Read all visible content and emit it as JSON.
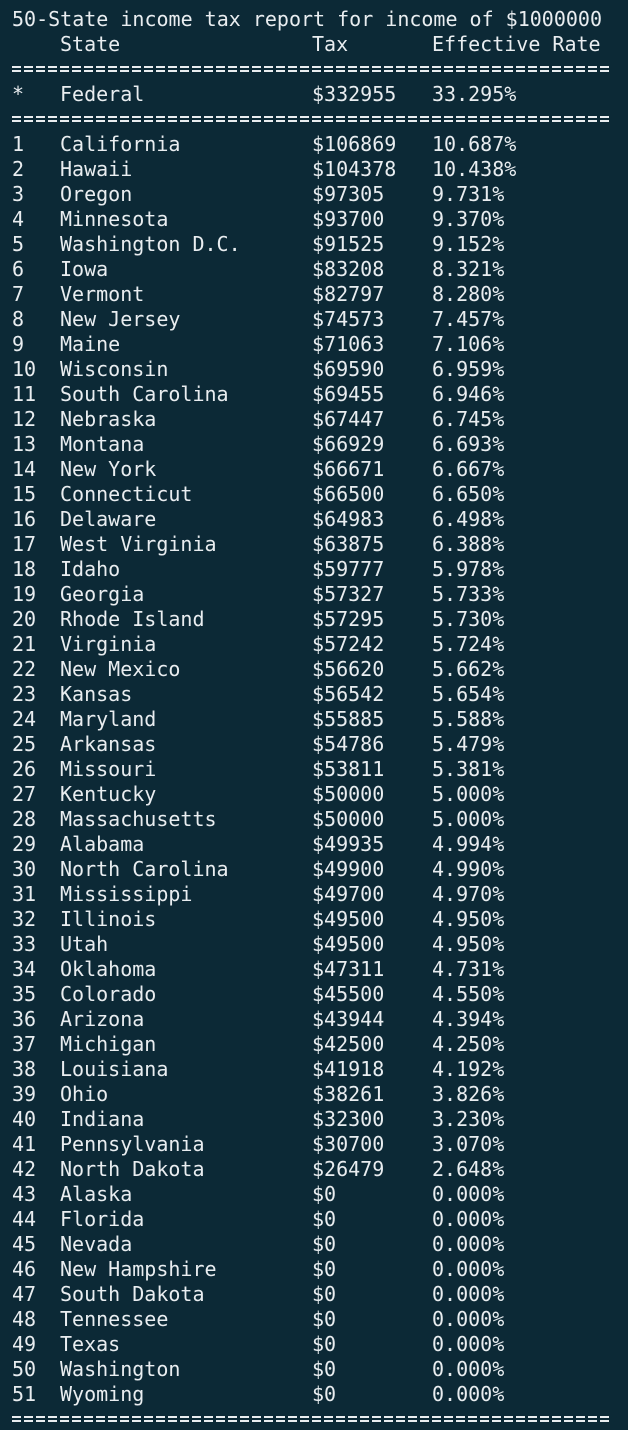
{
  "report": {
    "title": "50-State income tax report for income of $1000000",
    "headers": {
      "state": "State",
      "tax": "Tax",
      "rate": "Effective Rate"
    },
    "federal": {
      "mark": "*",
      "name": "Federal",
      "tax": "$332955",
      "rate": "33.295%"
    }
  },
  "rows": [
    {
      "rank": "1",
      "state": "California",
      "tax": "$106869",
      "rate": "10.687%"
    },
    {
      "rank": "2",
      "state": "Hawaii",
      "tax": "$104378",
      "rate": "10.438%"
    },
    {
      "rank": "3",
      "state": "Oregon",
      "tax": "$97305",
      "rate": "9.731%"
    },
    {
      "rank": "4",
      "state": "Minnesota",
      "tax": "$93700",
      "rate": "9.370%"
    },
    {
      "rank": "5",
      "state": "Washington D.C.",
      "tax": "$91525",
      "rate": "9.152%"
    },
    {
      "rank": "6",
      "state": "Iowa",
      "tax": "$83208",
      "rate": "8.321%"
    },
    {
      "rank": "7",
      "state": "Vermont",
      "tax": "$82797",
      "rate": "8.280%"
    },
    {
      "rank": "8",
      "state": "New Jersey",
      "tax": "$74573",
      "rate": "7.457%"
    },
    {
      "rank": "9",
      "state": "Maine",
      "tax": "$71063",
      "rate": "7.106%"
    },
    {
      "rank": "10",
      "state": "Wisconsin",
      "tax": "$69590",
      "rate": "6.959%"
    },
    {
      "rank": "11",
      "state": "South Carolina",
      "tax": "$69455",
      "rate": "6.946%"
    },
    {
      "rank": "12",
      "state": "Nebraska",
      "tax": "$67447",
      "rate": "6.745%"
    },
    {
      "rank": "13",
      "state": "Montana",
      "tax": "$66929",
      "rate": "6.693%"
    },
    {
      "rank": "14",
      "state": "New York",
      "tax": "$66671",
      "rate": "6.667%"
    },
    {
      "rank": "15",
      "state": "Connecticut",
      "tax": "$66500",
      "rate": "6.650%"
    },
    {
      "rank": "16",
      "state": "Delaware",
      "tax": "$64983",
      "rate": "6.498%"
    },
    {
      "rank": "17",
      "state": "West Virginia",
      "tax": "$63875",
      "rate": "6.388%"
    },
    {
      "rank": "18",
      "state": "Idaho",
      "tax": "$59777",
      "rate": "5.978%"
    },
    {
      "rank": "19",
      "state": "Georgia",
      "tax": "$57327",
      "rate": "5.733%"
    },
    {
      "rank": "20",
      "state": "Rhode Island",
      "tax": "$57295",
      "rate": "5.730%"
    },
    {
      "rank": "21",
      "state": "Virginia",
      "tax": "$57242",
      "rate": "5.724%"
    },
    {
      "rank": "22",
      "state": "New Mexico",
      "tax": "$56620",
      "rate": "5.662%"
    },
    {
      "rank": "23",
      "state": "Kansas",
      "tax": "$56542",
      "rate": "5.654%"
    },
    {
      "rank": "24",
      "state": "Maryland",
      "tax": "$55885",
      "rate": "5.588%"
    },
    {
      "rank": "25",
      "state": "Arkansas",
      "tax": "$54786",
      "rate": "5.479%"
    },
    {
      "rank": "26",
      "state": "Missouri",
      "tax": "$53811",
      "rate": "5.381%"
    },
    {
      "rank": "27",
      "state": "Kentucky",
      "tax": "$50000",
      "rate": "5.000%"
    },
    {
      "rank": "28",
      "state": "Massachusetts",
      "tax": "$50000",
      "rate": "5.000%"
    },
    {
      "rank": "29",
      "state": "Alabama",
      "tax": "$49935",
      "rate": "4.994%"
    },
    {
      "rank": "30",
      "state": "North Carolina",
      "tax": "$49900",
      "rate": "4.990%"
    },
    {
      "rank": "31",
      "state": "Mississippi",
      "tax": "$49700",
      "rate": "4.970%"
    },
    {
      "rank": "32",
      "state": "Illinois",
      "tax": "$49500",
      "rate": "4.950%"
    },
    {
      "rank": "33",
      "state": "Utah",
      "tax": "$49500",
      "rate": "4.950%"
    },
    {
      "rank": "34",
      "state": "Oklahoma",
      "tax": "$47311",
      "rate": "4.731%"
    },
    {
      "rank": "35",
      "state": "Colorado",
      "tax": "$45500",
      "rate": "4.550%"
    },
    {
      "rank": "36",
      "state": "Arizona",
      "tax": "$43944",
      "rate": "4.394%"
    },
    {
      "rank": "37",
      "state": "Michigan",
      "tax": "$42500",
      "rate": "4.250%"
    },
    {
      "rank": "38",
      "state": "Louisiana",
      "tax": "$41918",
      "rate": "4.192%"
    },
    {
      "rank": "39",
      "state": "Ohio",
      "tax": "$38261",
      "rate": "3.826%"
    },
    {
      "rank": "40",
      "state": "Indiana",
      "tax": "$32300",
      "rate": "3.230%"
    },
    {
      "rank": "41",
      "state": "Pennsylvania",
      "tax": "$30700",
      "rate": "3.070%"
    },
    {
      "rank": "42",
      "state": "North Dakota",
      "tax": "$26479",
      "rate": "2.648%"
    },
    {
      "rank": "43",
      "state": "Alaska",
      "tax": "$0",
      "rate": "0.000%"
    },
    {
      "rank": "44",
      "state": "Florida",
      "tax": "$0",
      "rate": "0.000%"
    },
    {
      "rank": "45",
      "state": "Nevada",
      "tax": "$0",
      "rate": "0.000%"
    },
    {
      "rank": "46",
      "state": "New Hampshire",
      "tax": "$0",
      "rate": "0.000%"
    },
    {
      "rank": "47",
      "state": "South Dakota",
      "tax": "$0",
      "rate": "0.000%"
    },
    {
      "rank": "48",
      "state": "Tennessee",
      "tax": "$0",
      "rate": "0.000%"
    },
    {
      "rank": "49",
      "state": "Texas",
      "tax": "$0",
      "rate": "0.000%"
    },
    {
      "rank": "50",
      "state": "Washington",
      "tax": "$0",
      "rate": "0.000%"
    },
    {
      "rank": "51",
      "state": "Wyoming",
      "tax": "$0",
      "rate": "0.000%"
    }
  ],
  "colors": {
    "background": "#0c2936",
    "text": "#e9edf0"
  }
}
